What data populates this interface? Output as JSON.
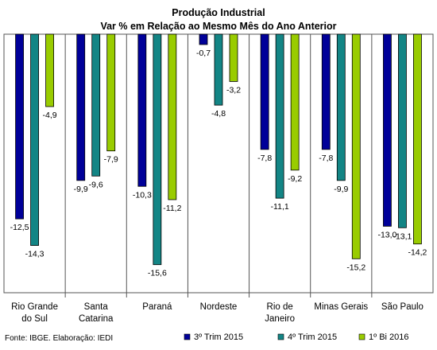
{
  "chart_data": {
    "type": "bar",
    "title": "Produção Industrial",
    "subtitle": "Var % em Relação ao Mesmo Mês do Ano Anterior",
    "categories": [
      [
        "Rio Grande",
        "do Sul"
      ],
      [
        "Santa",
        "Catarina"
      ],
      [
        "Paraná"
      ],
      [
        "Nordeste"
      ],
      [
        "Rio de",
        "Janeiro"
      ],
      [
        "Minas Gerais"
      ],
      [
        "São Paulo"
      ]
    ],
    "series": [
      {
        "name": "3º Trim 2015",
        "color": "#000099",
        "values": [
          -12.5,
          -9.9,
          -10.3,
          -0.7,
          -7.8,
          -7.8,
          -13.0
        ]
      },
      {
        "name": "4º Trim 2015",
        "color": "#138585",
        "values": [
          -14.3,
          -9.6,
          -15.6,
          -4.8,
          -11.1,
          -9.9,
          -13.1
        ]
      },
      {
        "name": "1º Bi 2016",
        "color": "#99CC00",
        "values": [
          -4.9,
          -7.9,
          -11.2,
          -3.2,
          -9.2,
          -15.2,
          -14.2
        ]
      }
    ],
    "value_labels": [
      [
        "-12,5",
        "-9,9",
        "-10,3",
        "-0,7",
        "-7,8",
        "-7,8",
        "-13,0"
      ],
      [
        "-14,3",
        "-9,6",
        "-15,6",
        "-4,8",
        "-11,1",
        "-9,9",
        "-13,1"
      ],
      [
        "-4,9",
        "-7,9",
        "-11,2",
        "-3,2",
        "-9,2",
        "-15,2",
        "-14,2"
      ]
    ],
    "ylim": [
      -17.5,
      0
    ],
    "grid": false,
    "category_separators": true,
    "legend_position": "bottom-right",
    "source": "Fonte: IBGE. Elaboração: IEDI"
  }
}
